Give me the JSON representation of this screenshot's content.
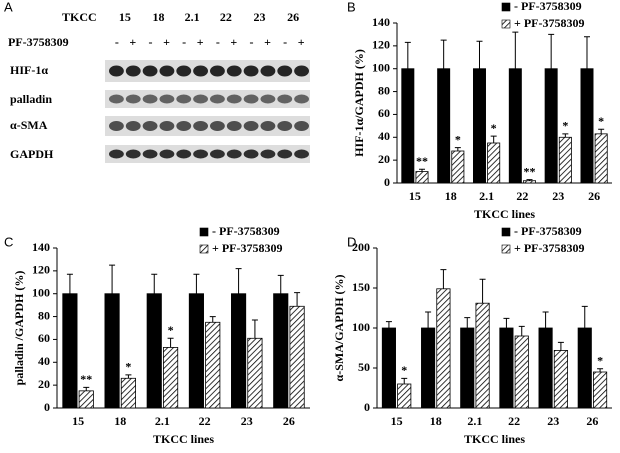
{
  "panel_labels": [
    "A",
    "B",
    "C",
    "D"
  ],
  "blot": {
    "header": "TKCC",
    "lanes": [
      "15",
      "18",
      "2.1",
      "22",
      "23",
      "26"
    ],
    "treatment": "PF-3758309",
    "signs": [
      "-",
      "+"
    ],
    "rows": [
      "HIF-1α",
      "palladin",
      "α-SMA",
      "GAPDH"
    ]
  },
  "chart_data": [
    {
      "type": "bar",
      "ylabel": "HIF-1α/GAPDH (%)",
      "xlabel": "TKCC lines",
      "categories": [
        "15",
        "18",
        "2.1",
        "22",
        "23",
        "26"
      ],
      "series": [
        {
          "name": "- PF-3758309",
          "color": "#000000",
          "values": [
            100,
            100,
            100,
            100,
            100,
            100
          ],
          "errors": [
            23,
            25,
            24,
            32,
            30,
            28
          ]
        },
        {
          "name": "+ PF-3758309",
          "color": "#ffffff",
          "hatch": true,
          "values": [
            10,
            28,
            35,
            2,
            40,
            43
          ],
          "errors": [
            2,
            3,
            6,
            1,
            3,
            4
          ],
          "annotations": [
            "**",
            "*",
            "*",
            "**",
            "*",
            "*"
          ]
        }
      ],
      "ylim": [
        0,
        140
      ],
      "yticks": [
        0,
        20,
        40,
        60,
        80,
        100,
        120,
        140
      ],
      "legend": "upper right"
    },
    {
      "type": "bar",
      "ylabel": "palladin /GAPDH (%)",
      "xlabel": "TKCC lines",
      "categories": [
        "15",
        "18",
        "2.1",
        "22",
        "23",
        "26"
      ],
      "series": [
        {
          "name": "- PF-3758309",
          "color": "#000000",
          "values": [
            100,
            100,
            100,
            100,
            100,
            100
          ],
          "errors": [
            17,
            25,
            17,
            17,
            22,
            16
          ]
        },
        {
          "name": "+ PF-3758309",
          "color": "#ffffff",
          "hatch": true,
          "values": [
            15,
            26,
            53,
            75,
            61,
            89
          ],
          "errors": [
            3,
            3,
            8,
            5,
            16,
            12
          ],
          "annotations": [
            "**",
            "*",
            "*",
            null,
            null,
            null
          ]
        }
      ],
      "ylim": [
        0,
        140
      ],
      "yticks": [
        0,
        20,
        40,
        60,
        80,
        100,
        120,
        140
      ],
      "legend": "upper right"
    },
    {
      "type": "bar",
      "ylabel": "α-SMA/GAPDH (%)",
      "xlabel": "TKCC lines",
      "categories": [
        "15",
        "18",
        "2.1",
        "22",
        "23",
        "26"
      ],
      "series": [
        {
          "name": "- PF-3758309",
          "color": "#000000",
          "values": [
            100,
            100,
            100,
            100,
            100,
            100
          ],
          "errors": [
            8,
            20,
            13,
            12,
            20,
            27
          ]
        },
        {
          "name": "+ PF-3758309",
          "color": "#ffffff",
          "hatch": true,
          "values": [
            30,
            149,
            131,
            90,
            72,
            45
          ],
          "errors": [
            7,
            24,
            30,
            12,
            10,
            4
          ],
          "annotations": [
            "*",
            null,
            null,
            null,
            null,
            "*"
          ]
        }
      ],
      "ylim": [
        0,
        200
      ],
      "yticks": [
        0,
        50,
        100,
        150,
        200
      ],
      "legend": "upper right"
    }
  ]
}
